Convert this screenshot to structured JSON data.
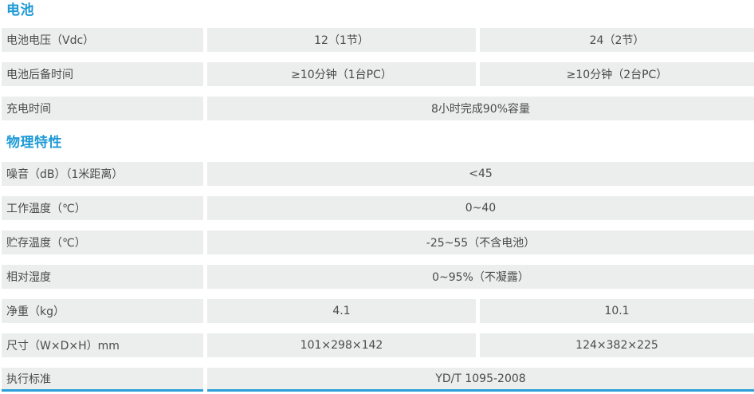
{
  "colors": {
    "accent": "#1e9ad6",
    "cell_background": "#eceeee",
    "text": "#4a4a4a",
    "bottom_rule": "#2b9fd9"
  },
  "sections": [
    {
      "title": "电池",
      "rows": [
        {
          "label": "电池电压（Vdc）",
          "values": [
            "12（1节）",
            "24（2节）"
          ],
          "span": false
        },
        {
          "label": "电池后备时间",
          "values": [
            "≥10分钟（1台PC）",
            "≥10分钟（2台PC）"
          ],
          "span": false
        },
        {
          "label": "充电时间",
          "values": [
            "8小时完成90%容量"
          ],
          "span": true
        }
      ]
    },
    {
      "title": "物理特性",
      "rows": [
        {
          "label": "噪音（dB）（1米距离）",
          "values": [
            "<45"
          ],
          "span": true
        },
        {
          "label": "工作温度（℃）",
          "values": [
            "0~40"
          ],
          "span": true
        },
        {
          "label": "贮存温度（℃）",
          "values": [
            "-25~55（不含电池）"
          ],
          "span": true
        },
        {
          "label": "相对湿度",
          "values": [
            "0~95%（不凝露）"
          ],
          "span": true
        },
        {
          "label": "净重（kg）",
          "values": [
            "4.1",
            "10.1"
          ],
          "span": false
        },
        {
          "label": "尺寸（W×D×H）mm",
          "values": [
            "101×298×142",
            "124×382×225"
          ],
          "span": false
        },
        {
          "label": "执行标准",
          "values": [
            "YD/T 1095-2008"
          ],
          "span": true,
          "underline": true
        }
      ]
    }
  ]
}
